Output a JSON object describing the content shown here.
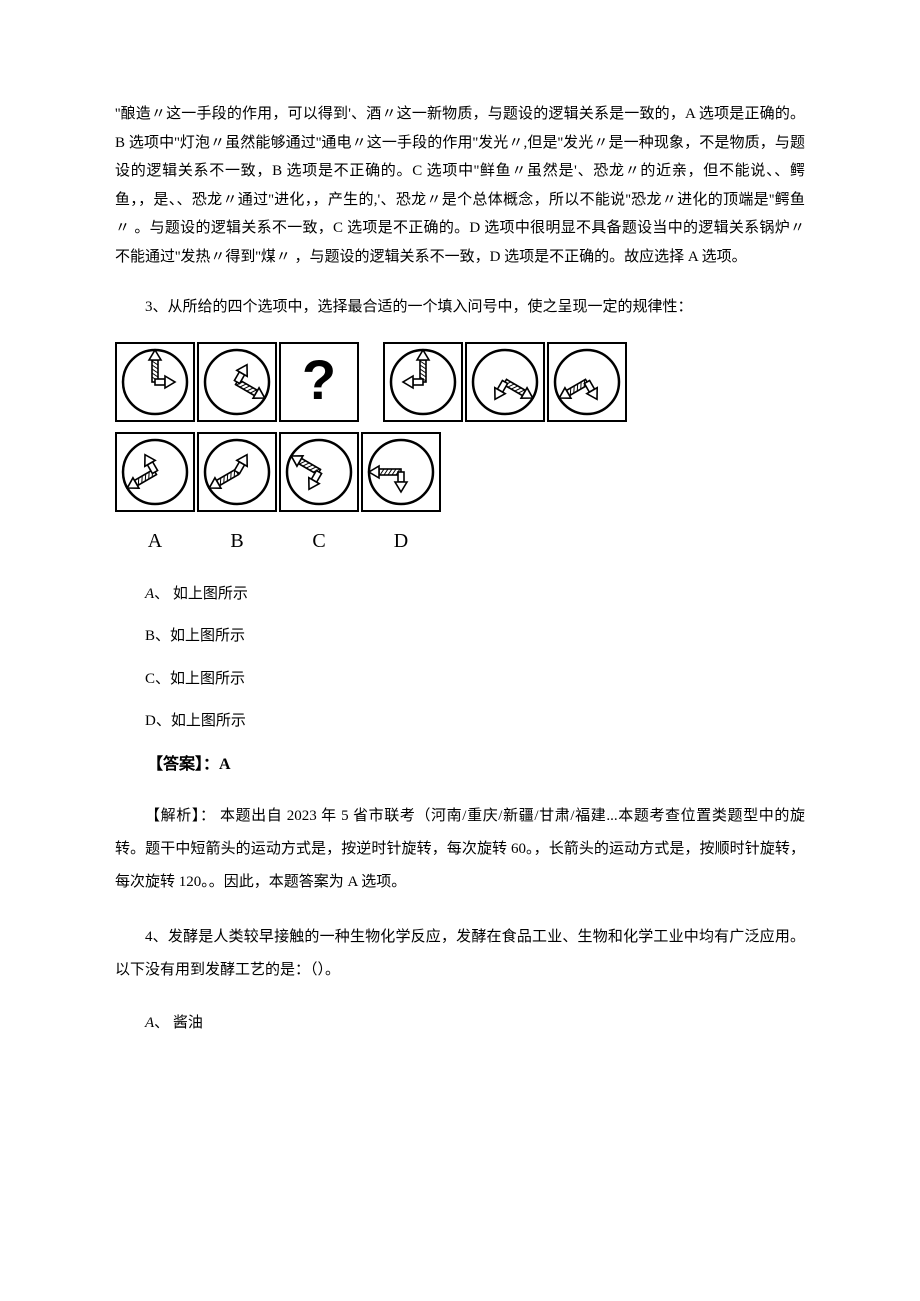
{
  "explanation1": "''酿造〃这一手段的作用，可以得到'、酒〃这一新物质，与题设的逻辑关系是一致的，A 选项是正确的。B 选项中''灯泡〃虽然能够通过''通电〃这一手段的作用''发光〃,但是''发光〃是一种现象，不是物质，与题设的逻辑关系不一致，B 选项是不正确的。C 选项中''鲜鱼〃虽然是'、恐龙〃的近亲，但不能说、、鳄鱼，，是、、恐龙〃通过''进化，，产生的,'、恐龙〃是个总体概念，所以不能说''恐龙〃进化的顶端是''鳄鱼〃 。与题设的逻辑关系不一致，C 选项是不正确的。D 选项中很明显不具备题设当中的逻辑关系锅炉〃不能通过''发热〃得到''煤〃 ，与题设的逻辑关系不一致，D 选项是不正确的。故应选择 A 选项。",
  "q3": {
    "prompt": "3、从所给的四个选项中，选择最合适的一个填入问号中，使之呈现一定的规律性：",
    "options": {
      "A": {
        "letter": "A",
        "text": "、 如上图所示"
      },
      "B": {
        "letter": "B",
        "text": "、如上图所示"
      },
      "C": {
        "letter": "C",
        "text": "、如上图所示"
      },
      "D": {
        "letter": "D",
        "text": "、如上图所示"
      }
    },
    "answer_label": "【答案】：",
    "answer_value": "A",
    "analysis": "【解析】： 本题出自 2023 年 5 省市联考（河南/重庆/新疆/甘肃/福建...本题考查位置类题型中的旋转。题干中短箭头的运动方式是，按逆时针旋转，每次旋转 60。，长箭头的运动方式是，按顺时针旋转，每次旋转 120。。因此，本题答案为 A 选项。",
    "figure": {
      "stroke": "#000000",
      "cell_border": "#000000",
      "cell_size": 80,
      "circle_r": 32,
      "row1": [
        {
          "type": "arrows",
          "short_angle": 0,
          "long_angle": 90
        },
        {
          "type": "arrows",
          "short_angle": 60,
          "long_angle": 330
        },
        {
          "type": "question"
        },
        {
          "type": "arrows",
          "short_angle": 180,
          "long_angle": 90,
          "gap": true
        },
        {
          "type": "arrows",
          "short_angle": 240,
          "long_angle": 330
        },
        {
          "type": "arrows",
          "short_angle": 300,
          "long_angle": 210
        }
      ],
      "row2_labels": [
        "A",
        "B",
        "C",
        "D"
      ],
      "row2": [
        {
          "type": "arrows",
          "short_angle": 120,
          "long_angle": 210
        },
        {
          "type": "arrows",
          "short_angle": 60,
          "long_angle": 210
        },
        {
          "type": "arrows",
          "short_angle": 240,
          "long_angle": 150
        },
        {
          "type": "arrows",
          "short_angle": 270,
          "long_angle": 180
        }
      ]
    }
  },
  "q4": {
    "prompt": "4、发酵是人类较早接触的一种生物化学反应，发酵在食品工业、生物和化学工业中均有广泛应用。以下没有用到发酵工艺的是：（）。",
    "options": {
      "A": {
        "letter": "A",
        "text": "、 酱油"
      }
    }
  }
}
